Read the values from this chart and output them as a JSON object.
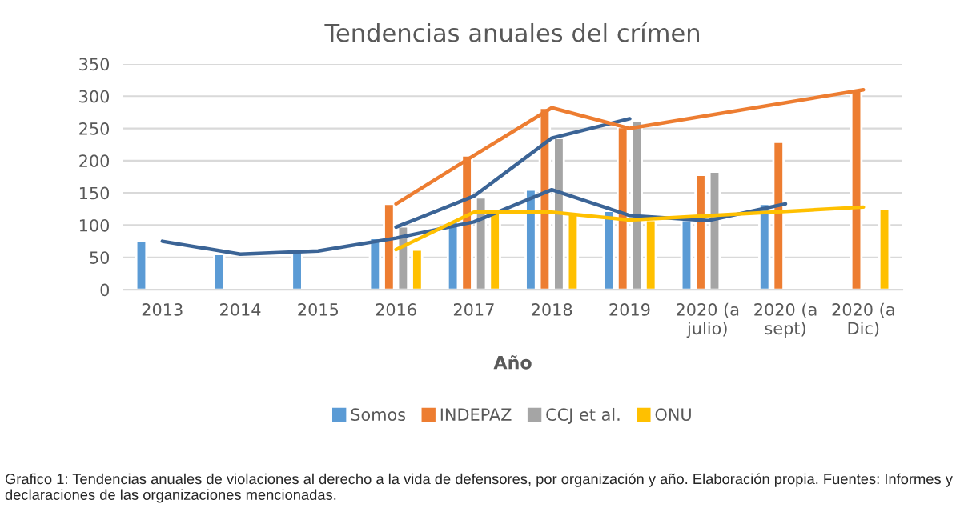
{
  "chart_data": {
    "type": "bar",
    "title": "Tendencias anuales del crímen",
    "xlabel": "Año",
    "categories": [
      "2013",
      "2014",
      "2015",
      "2016",
      "2017",
      "2018",
      "2019",
      "2020 (a\njulio)",
      "2020 (a\nsept)",
      "2020 (a\nDic)"
    ],
    "series": [
      {
        "name": "Somos",
        "color": "#5b9bd5",
        "values": [
          75,
          55,
          60,
          80,
          106,
          155,
          122,
          108,
          133,
          null
        ]
      },
      {
        "name": "INDEPAZ",
        "color": "#ed7d31",
        "values": [
          null,
          null,
          null,
          133,
          208,
          282,
          252,
          178,
          229,
          310
        ]
      },
      {
        "name": "CCJ et al.",
        "color": "#a5a5a5",
        "values": [
          null,
          null,
          null,
          98,
          143,
          235,
          262,
          183,
          null,
          null
        ]
      },
      {
        "name": "ONU",
        "color": "#ffc000",
        "values": [
          null,
          null,
          null,
          62,
          121,
          119,
          108,
          null,
          null,
          125
        ]
      },
      {
        "type": "line",
        "color": "#3b6496",
        "values": [
          75,
          55,
          60,
          80,
          105,
          155,
          115,
          107,
          133,
          null
        ]
      },
      {
        "type": "line",
        "color": "#3b6496",
        "values": [
          null,
          null,
          null,
          97,
          145,
          235,
          265,
          null,
          null,
          null
        ]
      },
      {
        "type": "line",
        "color": "#ed7d31",
        "values": [
          null,
          null,
          null,
          133,
          208,
          282,
          250,
          null,
          null,
          310
        ]
      },
      {
        "type": "line",
        "color": "#ffc000",
        "values": [
          null,
          null,
          null,
          62,
          120,
          120,
          108,
          null,
          null,
          128
        ]
      }
    ],
    "ylim": [
      0,
      350
    ],
    "yticks": [
      0,
      50,
      100,
      150,
      200,
      250,
      300,
      350
    ],
    "grid": "y",
    "legend": "bottom",
    "annotations": [
      "Grafico 1: Tendencias anuales de violaciones al derecho a la vida de defensores, por organización y año. Elaboración propia. Fuentes: Informes y declaraciones de las organizaciones mencionadas."
    ]
  }
}
